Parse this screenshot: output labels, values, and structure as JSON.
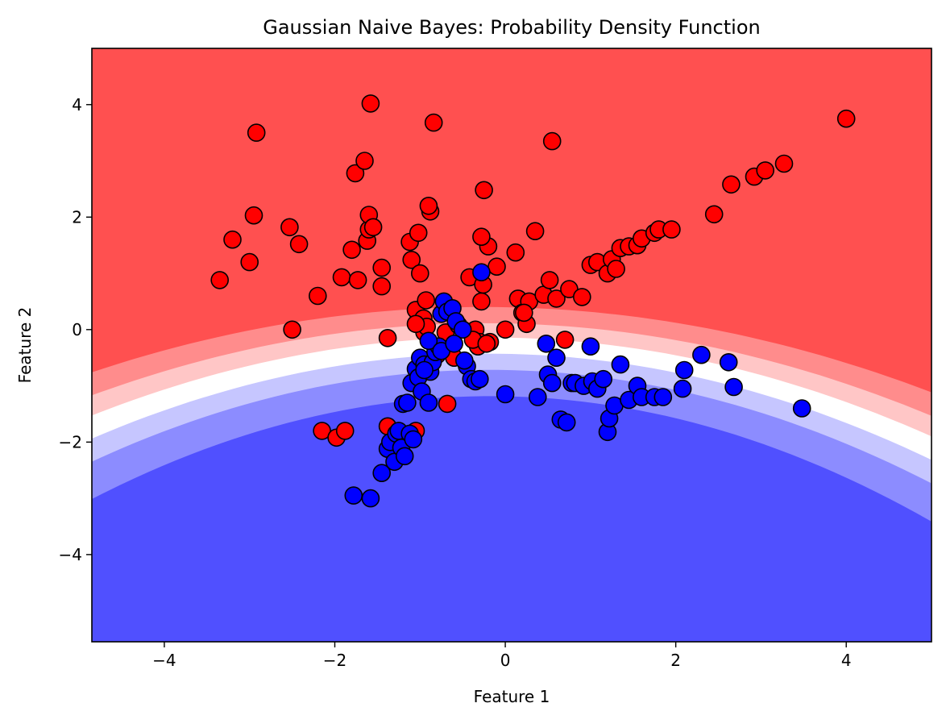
{
  "chart_data": {
    "type": "scatter",
    "title": "Gaussian Naive Bayes: Probability Density Function",
    "xlabel": "Feature 1",
    "ylabel": "Feature 2",
    "xlim": [
      -4.85,
      5.0
    ],
    "ylim": [
      -5.55,
      5.0
    ],
    "xticks": [
      -4,
      -2,
      0,
      2,
      4
    ],
    "yticks": [
      -4,
      -2,
      0,
      2,
      4
    ],
    "grid": false,
    "background": {
      "type": "filled-contour",
      "description_levels": [
        "class-0 high probability",
        "class-0 medium",
        "class-0 low",
        "boundary",
        "class-1 low",
        "class-1 medium",
        "class-1 high probability"
      ],
      "colors": [
        "#ff5050",
        "#ff8c8c",
        "#ffc6c6",
        "#ffffff",
        "#c6c6ff",
        "#8c8cff",
        "#5050ff"
      ],
      "boundary_y_at_x": [
        [
          -4.85,
          -0.7
        ],
        [
          0,
          0.35
        ],
        [
          5.0,
          -1.05
        ]
      ]
    },
    "marker_edge_color": "#000000",
    "series": [
      {
        "color": "#ff0000",
        "x": [
          -3.35,
          -3.2,
          -2.95,
          -3.0,
          -2.92,
          -2.5,
          -2.53,
          -2.42,
          -2.2,
          -1.92,
          -1.8,
          -1.76,
          -1.73,
          -1.65,
          -1.62,
          -1.6,
          -1.6,
          -1.58,
          -1.55,
          -1.45,
          -1.45,
          -1.38,
          -1.12,
          -1.1,
          -1.05,
          -1.02,
          -1.0,
          -0.96,
          -0.95,
          -0.93,
          -0.88,
          -0.84,
          -0.9,
          -0.92,
          -1.05,
          -0.98,
          -0.8,
          -0.7,
          -0.55,
          -0.42,
          -0.35,
          -0.3,
          -0.28,
          -0.26,
          -0.25,
          -0.2,
          -0.1,
          -0.18,
          -0.32,
          -0.38,
          -0.28,
          -0.22,
          0.0,
          0.12,
          0.15,
          0.2,
          0.25,
          0.28,
          0.22,
          0.35,
          0.45,
          0.52,
          0.55,
          0.6,
          0.7,
          0.75,
          0.9,
          1.0,
          1.08,
          1.2,
          1.25,
          1.3,
          1.35,
          1.45,
          1.55,
          1.6,
          1.75,
          1.8,
          1.95,
          2.45,
          2.65,
          2.92,
          3.05,
          3.27,
          4.0,
          -2.15,
          -1.98,
          -1.88,
          -1.38,
          -1.05,
          -0.68,
          -0.6
        ],
        "y": [
          0.88,
          1.6,
          2.03,
          1.2,
          3.5,
          0.0,
          1.82,
          1.52,
          0.6,
          0.93,
          1.42,
          2.78,
          0.88,
          3.0,
          1.58,
          1.78,
          2.04,
          4.02,
          1.82,
          1.1,
          0.77,
          -0.15,
          1.56,
          1.24,
          0.35,
          1.72,
          1.0,
          0.2,
          -0.05,
          0.52,
          2.1,
          3.68,
          2.2,
          0.05,
          0.1,
          -0.55,
          -0.45,
          -0.05,
          0.08,
          0.93,
          0.0,
          -0.22,
          0.5,
          0.8,
          2.48,
          1.48,
          1.12,
          -0.22,
          -0.3,
          -0.18,
          1.65,
          -0.25,
          0.0,
          1.37,
          0.55,
          0.3,
          0.1,
          0.5,
          0.3,
          1.75,
          0.62,
          0.88,
          3.35,
          0.55,
          -0.18,
          0.72,
          0.58,
          1.15,
          1.2,
          1.0,
          1.25,
          1.08,
          1.45,
          1.48,
          1.5,
          1.62,
          1.72,
          1.78,
          1.78,
          2.05,
          2.58,
          2.72,
          2.83,
          2.95,
          3.75,
          -1.8,
          -1.92,
          -1.8,
          -1.72,
          -1.8,
          -1.32,
          -0.5
        ]
      },
      {
        "color": "#0000ff",
        "x": [
          -1.78,
          -1.58,
          -1.45,
          -1.38,
          -1.35,
          -1.3,
          -1.28,
          -1.22,
          -1.18,
          -1.2,
          -1.15,
          -1.1,
          -1.05,
          -1.02,
          -1.0,
          -0.98,
          -0.95,
          -0.9,
          -0.88,
          -0.85,
          -0.82,
          -0.78,
          -0.75,
          -0.72,
          -0.68,
          -0.62,
          -0.58,
          -0.5,
          -0.45,
          -0.4,
          -0.35,
          -0.3,
          -0.28,
          0.0,
          0.38,
          0.48,
          0.5,
          0.55,
          0.6,
          0.65,
          0.72,
          0.78,
          0.82,
          0.92,
          1.0,
          1.02,
          1.08,
          1.15,
          1.2,
          1.22,
          1.28,
          1.35,
          1.45,
          1.55,
          1.6,
          1.75,
          1.85,
          2.08,
          2.1,
          2.3,
          2.62,
          2.68,
          3.48,
          -1.25,
          -1.12,
          -1.08,
          -0.95,
          -0.9,
          -0.75,
          -0.6,
          -0.48
        ],
        "y": [
          -2.95,
          -3.0,
          -2.55,
          -2.12,
          -2.0,
          -2.35,
          -1.85,
          -2.1,
          -2.25,
          -1.32,
          -1.3,
          -0.95,
          -0.7,
          -0.85,
          -0.5,
          -1.1,
          -0.62,
          -1.3,
          -0.75,
          -0.58,
          -0.4,
          -0.3,
          0.28,
          0.5,
          0.32,
          0.38,
          0.15,
          0.0,
          -0.65,
          -0.88,
          -0.92,
          -0.88,
          1.02,
          -1.15,
          -1.2,
          -0.25,
          -0.8,
          -0.95,
          -0.5,
          -1.6,
          -1.65,
          -0.95,
          -0.95,
          -1.0,
          -0.3,
          -0.92,
          -1.05,
          -0.88,
          -1.82,
          -1.58,
          -1.35,
          -0.62,
          -1.25,
          -1.0,
          -1.2,
          -1.2,
          -1.2,
          -1.05,
          -0.72,
          -0.45,
          -0.58,
          -1.02,
          -1.4,
          -1.8,
          -1.85,
          -1.95,
          -0.72,
          -0.2,
          -0.38,
          -0.25,
          -0.55
        ]
      }
    ]
  }
}
